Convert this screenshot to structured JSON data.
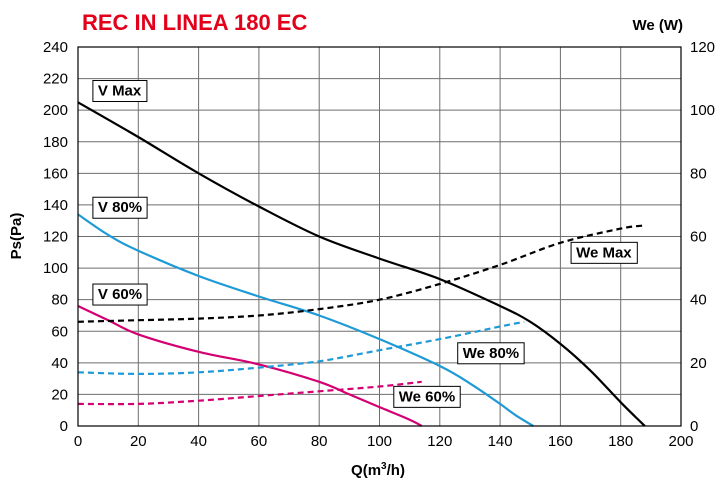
{
  "chart_data": {
    "type": "line",
    "title": "REC IN LINEA 180 EC",
    "title_color": "#e2001a",
    "xlabel": "Q(m",
    "xlabel_sup": "3",
    "xlabel_tail": "/h)",
    "ylabel": "Ps(Pa)",
    "y2label": "We (W)",
    "xlim": [
      0,
      200
    ],
    "ylim": [
      0,
      240
    ],
    "y2lim": [
      0,
      120
    ],
    "xticks": [
      "0",
      "20",
      "40",
      "60",
      "80",
      "100",
      "120",
      "140",
      "160",
      "180",
      "200"
    ],
    "yticks": [
      "0",
      "20",
      "40",
      "60",
      "80",
      "100",
      "120",
      "140",
      "160",
      "180",
      "200",
      "220",
      "240"
    ],
    "y2ticks": [
      "0",
      "20",
      "40",
      "60",
      "80",
      "100",
      "120"
    ],
    "grid": true,
    "series": [
      {
        "name": "V Max",
        "axis": "left",
        "color": "#000000",
        "style": "solid",
        "x": [
          0,
          20,
          40,
          60,
          80,
          100,
          120,
          140,
          150,
          160,
          170,
          180,
          188
        ],
        "y": [
          205,
          183,
          160,
          139,
          120,
          106,
          93,
          76,
          66,
          52,
          35,
          15,
          0
        ]
      },
      {
        "name": "V 80%",
        "axis": "left",
        "color": "#1e9ad6",
        "style": "solid",
        "x": [
          0,
          10,
          20,
          40,
          60,
          80,
          100,
          120,
          130,
          140,
          145,
          151
        ],
        "y": [
          134,
          121,
          111,
          95,
          82,
          70,
          55,
          38,
          27,
          14,
          7,
          0
        ]
      },
      {
        "name": "V 60%",
        "axis": "left",
        "color": "#d40072",
        "style": "solid",
        "x": [
          0,
          10,
          20,
          40,
          60,
          80,
          90,
          100,
          110,
          114
        ],
        "y": [
          76,
          67,
          58,
          47,
          39,
          28,
          20,
          12,
          4,
          0
        ]
      },
      {
        "name": "We Max",
        "axis": "right",
        "color": "#000000",
        "style": "dashed",
        "x": [
          0,
          20,
          40,
          60,
          80,
          100,
          120,
          140,
          160,
          180,
          188
        ],
        "y": [
          33,
          33.5,
          34,
          35,
          37,
          40,
          45,
          51,
          58,
          62.5,
          63.5
        ]
      },
      {
        "name": "We 80%",
        "axis": "right",
        "color": "#1e9ad6",
        "style": "dashed",
        "x": [
          0,
          20,
          40,
          60,
          80,
          100,
          120,
          140,
          148
        ],
        "y": [
          17,
          16.5,
          17,
          18.5,
          20.5,
          24,
          27.5,
          31.5,
          33
        ]
      },
      {
        "name": "We 60%",
        "axis": "right",
        "color": "#d40072",
        "style": "dashed",
        "x": [
          0,
          20,
          40,
          60,
          80,
          100,
          114
        ],
        "y": [
          7,
          7,
          8,
          9.5,
          11,
          12.5,
          14
        ]
      }
    ]
  }
}
